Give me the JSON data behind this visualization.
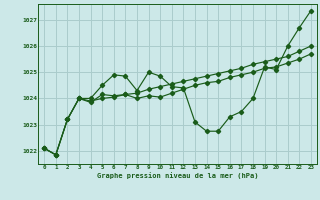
{
  "title": "Graphe pression niveau de la mer (hPa)",
  "bg_color": "#cce8e8",
  "grid_color": "#aacccc",
  "line_color": "#1a5c1a",
  "x_min": -0.5,
  "x_max": 23.5,
  "y_min": 1021.5,
  "y_max": 1027.6,
  "yticks": [
    1022,
    1023,
    1024,
    1025,
    1026,
    1027
  ],
  "xticks": [
    0,
    1,
    2,
    3,
    4,
    5,
    6,
    7,
    8,
    9,
    10,
    11,
    12,
    13,
    14,
    15,
    16,
    17,
    18,
    19,
    20,
    21,
    22,
    23
  ],
  "series": [
    [
      1022.1,
      1021.85,
      1023.2,
      1024.0,
      1024.0,
      1024.5,
      1024.9,
      1024.85,
      1024.3,
      1025.0,
      1024.85,
      1024.45,
      1024.4,
      1023.1,
      1022.75,
      1022.75,
      1023.3,
      1023.5,
      1024.0,
      1025.2,
      1025.1,
      1026.0,
      1026.7,
      1027.35
    ],
    [
      1022.1,
      1021.85,
      1023.2,
      1024.0,
      1023.85,
      1024.15,
      1024.1,
      1024.15,
      1024.0,
      1024.1,
      1024.05,
      1024.2,
      1024.35,
      1024.5,
      1024.6,
      1024.65,
      1024.8,
      1024.9,
      1025.0,
      1025.15,
      1025.2,
      1025.35,
      1025.5,
      1025.7
    ],
    [
      1022.1,
      1021.85,
      1023.2,
      1024.0,
      1023.9,
      1024.0,
      1024.05,
      1024.15,
      1024.2,
      1024.35,
      1024.45,
      1024.55,
      1024.65,
      1024.75,
      1024.85,
      1024.95,
      1025.05,
      1025.15,
      1025.3,
      1025.4,
      1025.5,
      1025.6,
      1025.8,
      1026.0
    ]
  ]
}
